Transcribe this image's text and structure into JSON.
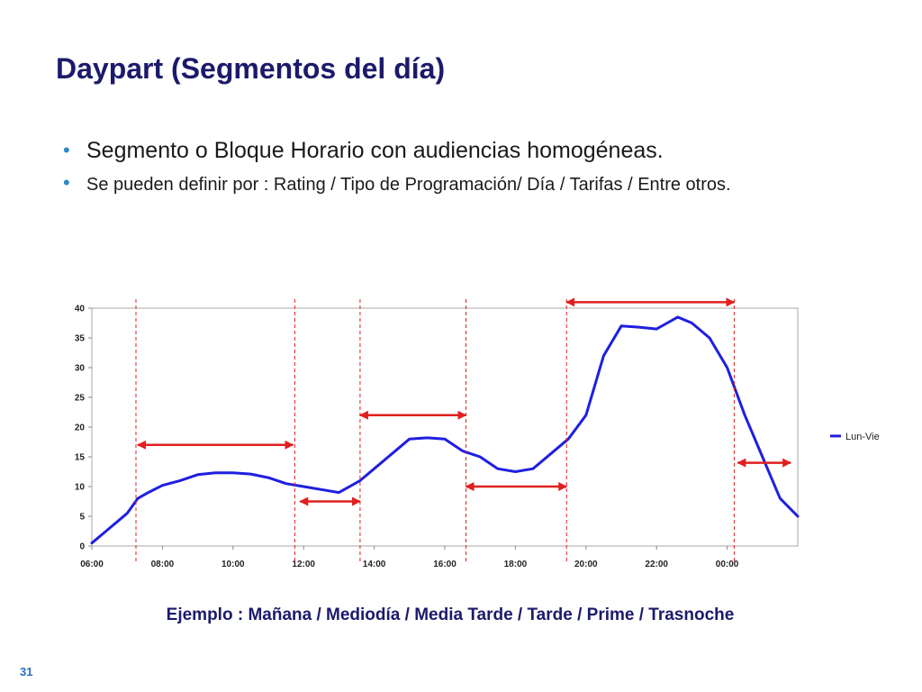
{
  "slide": {
    "title": "Daypart (Segmentos del día)",
    "bullets": [
      "Segmento o Bloque Horario con audiencias homogéneas.",
      "Se pueden definir por : Rating / Tipo de Programación/  Día / Tarifas / Entre otros."
    ],
    "caption": "Ejemplo : Mañana / Mediodía / Media Tarde / Tarde / Prime / Trasnoche",
    "page_number": "31"
  },
  "colors": {
    "title": "#1b1a6b",
    "bullet_dot": "#2a8ac6",
    "series_line": "#1f1fe0",
    "segment_arrows": "#e02020",
    "boundary_lines": "#e02020"
  },
  "chart_data": {
    "type": "line",
    "title": "",
    "xlabel": "",
    "ylabel": "",
    "ylim": [
      0,
      40
    ],
    "y_ticks": [
      "0",
      "5",
      "10",
      "15",
      "20",
      "25",
      "30",
      "35",
      "40"
    ],
    "x_range_hours": [
      6,
      26
    ],
    "x_tick_hours": [
      6,
      8,
      10,
      12,
      14,
      16,
      18,
      20,
      22,
      24
    ],
    "x_tick_labels": [
      "06:00",
      "08:00",
      "10:00",
      "12:00",
      "14:00",
      "16:00",
      "18:00",
      "20:00",
      "22:00",
      "00:00"
    ],
    "grid": false,
    "legend_position": "right",
    "series": [
      {
        "name": "Lun-Vie",
        "x_hours": [
          6.0,
          6.4,
          6.8,
          7.0,
          7.3,
          7.6,
          8.0,
          8.5,
          9.0,
          9.5,
          10.0,
          10.5,
          11.0,
          11.5,
          12.0,
          12.5,
          13.0,
          13.3,
          13.6,
          14.0,
          14.5,
          15.0,
          15.5,
          16.0,
          16.5,
          17.0,
          17.5,
          18.0,
          18.5,
          19.0,
          19.5,
          20.0,
          20.5,
          21.0,
          21.5,
          22.0,
          22.3,
          22.6,
          23.0,
          23.5,
          24.0,
          24.5,
          25.0,
          25.5,
          26.0
        ],
        "values": [
          0.5,
          2.5,
          4.5,
          5.5,
          8.0,
          9.0,
          10.2,
          11.0,
          12.0,
          12.3,
          12.3,
          12.1,
          11.5,
          10.5,
          10.0,
          9.5,
          9.0,
          10.0,
          11.0,
          13.0,
          15.5,
          18.0,
          18.2,
          18.0,
          16.0,
          15.0,
          13.0,
          12.5,
          13.0,
          15.5,
          18.0,
          22.0,
          32.0,
          37.0,
          36.8,
          36.5,
          37.5,
          38.5,
          37.5,
          35.0,
          30.0,
          22.0,
          15.0,
          8.0,
          5.0
        ]
      }
    ],
    "segment_boundaries_hours": [
      7.25,
      11.75,
      13.6,
      16.6,
      19.45,
      24.2
    ],
    "segment_arrows": [
      {
        "x_start_hours": 7.3,
        "x_end_hours": 11.7,
        "y": 17
      },
      {
        "x_start_hours": 11.9,
        "x_end_hours": 13.6,
        "y": 7.5
      },
      {
        "x_start_hours": 13.6,
        "x_end_hours": 16.6,
        "y": 22
      },
      {
        "x_start_hours": 16.6,
        "x_end_hours": 19.45,
        "y": 10
      },
      {
        "x_start_hours": 19.45,
        "x_end_hours": 24.2,
        "y": 41
      },
      {
        "x_start_hours": 24.3,
        "x_end_hours": 25.8,
        "y": 14
      }
    ]
  }
}
